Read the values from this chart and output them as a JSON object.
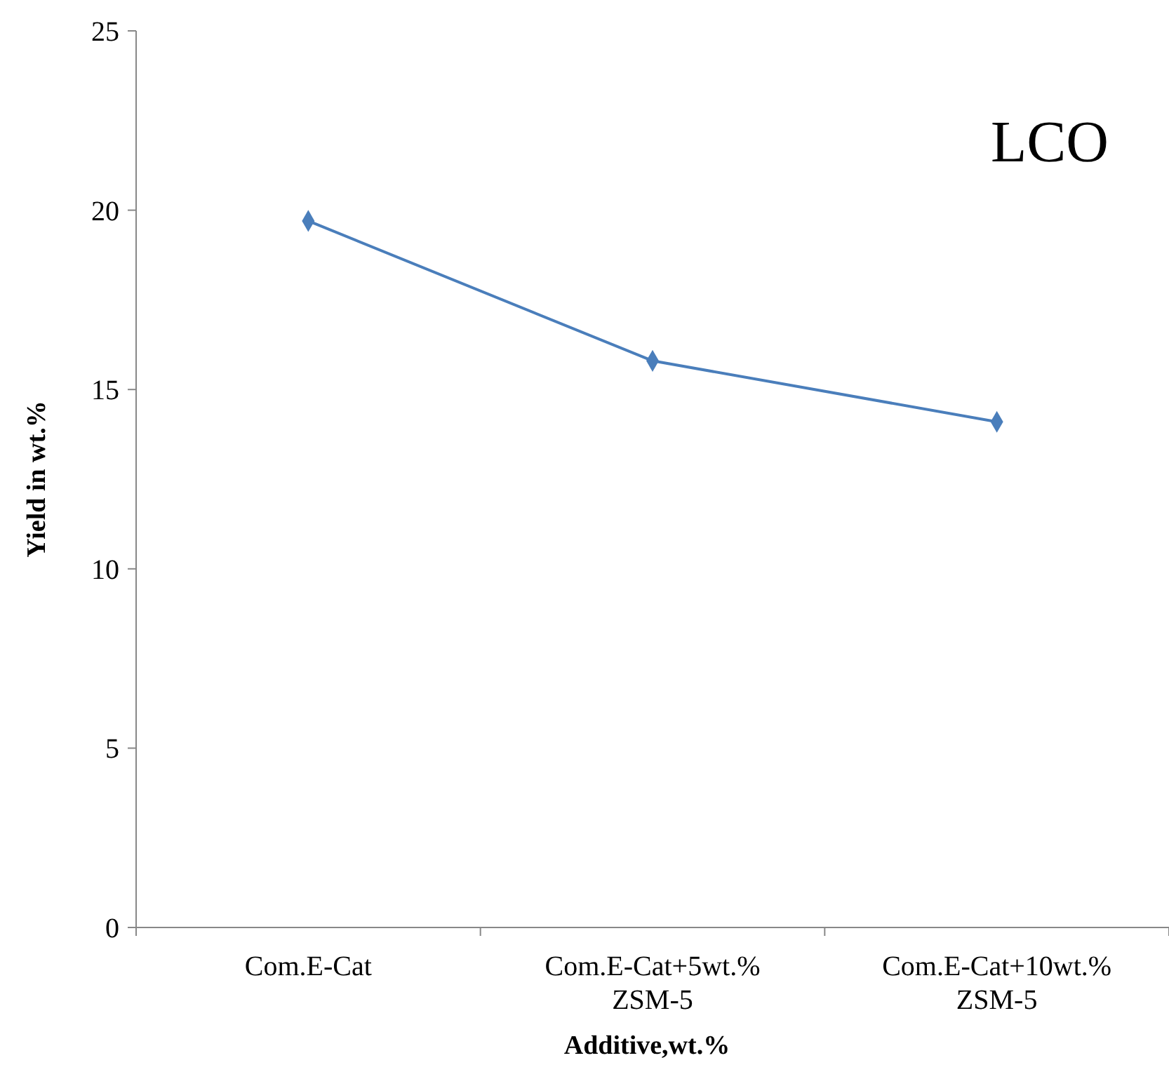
{
  "chart_data": {
    "type": "line",
    "title": "LCO",
    "xlabel": "Additive,wt.%",
    "ylabel": "Yield in wt.%",
    "categories": [
      "Com.E-Cat",
      "Com.E-Cat+5wt.% ZSM-5",
      "Com.E-Cat+10wt.% ZSM-5"
    ],
    "series": [
      {
        "color": "#4a7ebb",
        "values": [
          19.7,
          15.8,
          14.1
        ]
      }
    ],
    "ylim": [
      0,
      25
    ],
    "yticks": [
      0,
      5,
      10,
      15,
      20,
      25
    ],
    "grid": false,
    "marker": "diamond",
    "line_style": "solid"
  }
}
